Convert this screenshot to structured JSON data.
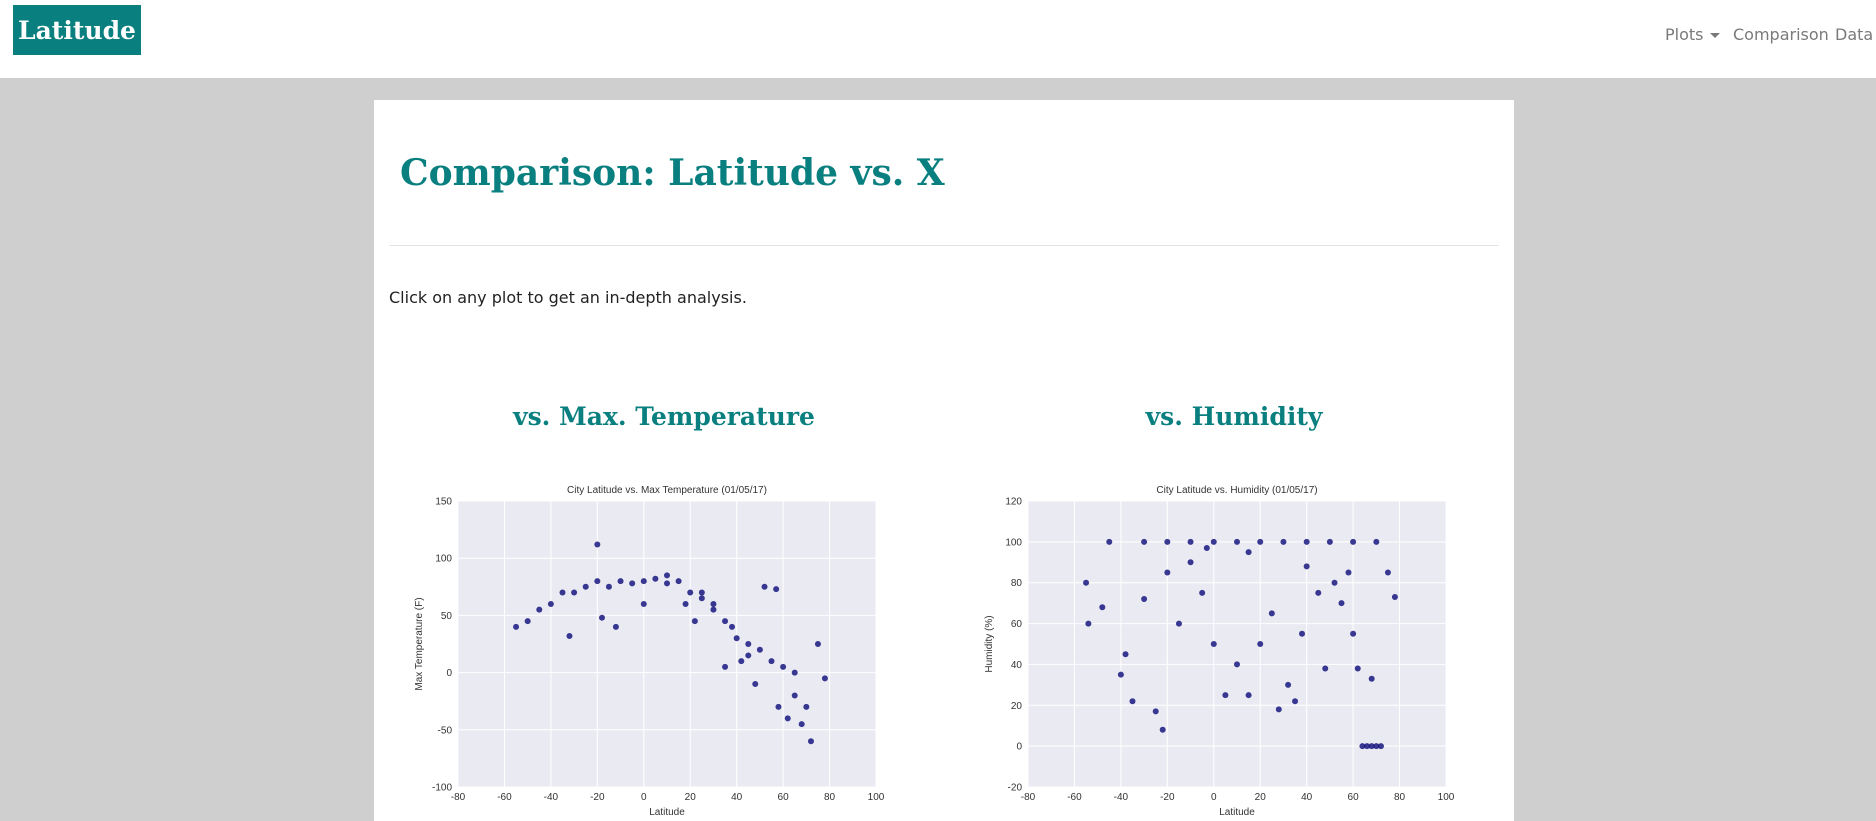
{
  "navbar": {
    "brand": "Latitude",
    "items": [
      "Plots",
      "Comparison",
      "Data"
    ]
  },
  "page": {
    "title": "Comparison: Latitude vs. X",
    "intro": "Click on any plot to get an in-depth analysis."
  },
  "plots": [
    {
      "heading": "vs. Max. Temperature",
      "chart_data": {
        "type": "scatter",
        "title": "City Latitude vs. Max Temperature (01/05/17)",
        "x_label": "Latitude",
        "y_label": "Max Temperature (F)",
        "xlim": [
          -80,
          100
        ],
        "xticks": [
          -80,
          -60,
          -40,
          -20,
          0,
          20,
          40,
          60,
          80,
          100
        ],
        "ylim": [
          -100,
          150
        ],
        "yticks": [
          -100,
          -50,
          0,
          50,
          100,
          150
        ],
        "grid": true,
        "series": [
          {
            "color": "#0a0a78",
            "x": [
              -55,
              -50,
              -45,
              -40,
              -35,
              -30,
              -25,
              -20,
              -20,
              -15,
              -10,
              -5,
              0,
              5,
              10,
              15,
              20,
              25,
              30,
              35,
              40,
              45,
              50,
              55,
              60,
              62,
              65,
              68,
              70,
              72,
              75,
              78,
              52,
              57,
              45,
              38,
              30,
              25,
              18,
              10,
              -32,
              -12,
              -18,
              48,
              58,
              65,
              42,
              35,
              22,
              0
            ],
            "values": [
              40,
              45,
              55,
              60,
              70,
              70,
              75,
              80,
              112,
              75,
              80,
              78,
              80,
              82,
              78,
              80,
              70,
              65,
              55,
              45,
              30,
              25,
              20,
              10,
              5,
              -40,
              -20,
              -45,
              -30,
              -60,
              25,
              -5,
              75,
              73,
              15,
              40,
              60,
              70,
              60,
              85,
              32,
              40,
              48,
              -10,
              -30,
              0,
              10,
              5,
              45,
              60
            ]
          }
        ]
      }
    },
    {
      "heading": "vs. Humidity",
      "chart_data": {
        "type": "scatter",
        "title": "City Latitude vs. Humidity (01/05/17)",
        "x_label": "Latitude",
        "y_label": "Humidity (%)",
        "xlim": [
          -80,
          100
        ],
        "xticks": [
          -80,
          -60,
          -40,
          -20,
          0,
          20,
          40,
          60,
          80,
          100
        ],
        "ylim": [
          -20,
          120
        ],
        "yticks": [
          -20,
          0,
          20,
          40,
          60,
          80,
          100,
          120
        ],
        "grid": true,
        "series": [
          {
            "color": "#0a0a78",
            "x": [
              -45,
              -30,
              -20,
              -10,
              0,
              10,
              20,
              30,
              40,
              50,
              60,
              70,
              -55,
              -54,
              -48,
              -40,
              -35,
              -25,
              -22,
              -38,
              -30,
              -20,
              -15,
              -10,
              -5,
              0,
              5,
              10,
              15,
              20,
              25,
              28,
              32,
              35,
              38,
              40,
              45,
              48,
              52,
              55,
              58,
              60,
              62,
              64,
              66,
              68,
              70,
              72,
              68,
              75,
              78,
              -3,
              15
            ],
            "values": [
              100,
              100,
              100,
              100,
              100,
              100,
              100,
              100,
              100,
              100,
              100,
              100,
              80,
              60,
              68,
              35,
              22,
              17,
              8,
              45,
              72,
              85,
              60,
              90,
              75,
              50,
              25,
              40,
              25,
              50,
              65,
              18,
              30,
              22,
              55,
              88,
              75,
              38,
              80,
              70,
              85,
              55,
              38,
              0,
              0,
              0,
              0,
              0,
              33,
              85,
              73,
              97,
              95
            ]
          }
        ]
      }
    }
  ]
}
